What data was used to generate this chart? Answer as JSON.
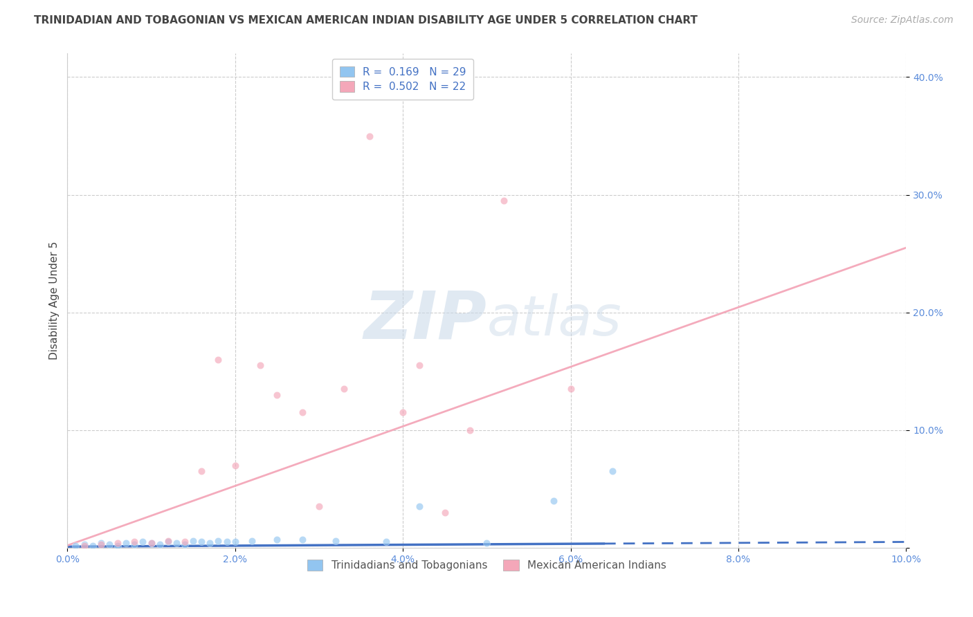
{
  "title": "TRINIDADIAN AND TOBAGONIAN VS MEXICAN AMERICAN INDIAN DISABILITY AGE UNDER 5 CORRELATION CHART",
  "source": "Source: ZipAtlas.com",
  "ylabel": "Disability Age Under 5",
  "xlim": [
    0.0,
    0.1
  ],
  "ylim": [
    0.0,
    0.42
  ],
  "xticks": [
    0.0,
    0.02,
    0.04,
    0.06,
    0.08,
    0.1
  ],
  "yticks": [
    0.0,
    0.1,
    0.2,
    0.3,
    0.4
  ],
  "ytick_labels": [
    "",
    "10.0%",
    "20.0%",
    "30.0%",
    "40.0%"
  ],
  "xtick_labels": [
    "0.0%",
    "2.0%",
    "4.0%",
    "6.0%",
    "8.0%",
    "10.0%"
  ],
  "grid_color": "#cccccc",
  "background_color": "#ffffff",
  "series": [
    {
      "name": "Trinidadians and Tobagonians",
      "R": 0.169,
      "N": 29,
      "color": "#92C5F0",
      "marker_color": "#92C5F0",
      "line_color": "#4472C4",
      "points_x": [
        0.001,
        0.002,
        0.003,
        0.004,
        0.005,
        0.006,
        0.007,
        0.008,
        0.009,
        0.01,
        0.011,
        0.012,
        0.013,
        0.014,
        0.015,
        0.016,
        0.017,
        0.018,
        0.019,
        0.02,
        0.022,
        0.025,
        0.028,
        0.032,
        0.038,
        0.042,
        0.05,
        0.058,
        0.065
      ],
      "points_y": [
        0.002,
        0.003,
        0.002,
        0.004,
        0.003,
        0.002,
        0.004,
        0.003,
        0.005,
        0.004,
        0.003,
        0.005,
        0.004,
        0.003,
        0.006,
        0.005,
        0.004,
        0.006,
        0.005,
        0.005,
        0.006,
        0.007,
        0.007,
        0.006,
        0.005,
        0.035,
        0.004,
        0.04,
        0.065
      ],
      "trend_x": [
        0.0,
        0.1
      ],
      "trend_y": [
        0.001,
        0.005
      ],
      "line_dashed_from": 0.065
    },
    {
      "name": "Mexican American Indians",
      "R": 0.502,
      "N": 22,
      "color": "#F4A7B9",
      "marker_color": "#F4A7B9",
      "line_color": "#F4A7B9",
      "points_x": [
        0.002,
        0.004,
        0.006,
        0.008,
        0.01,
        0.012,
        0.014,
        0.016,
        0.018,
        0.02,
        0.023,
        0.025,
        0.028,
        0.03,
        0.033,
        0.036,
        0.04,
        0.042,
        0.045,
        0.048,
        0.052,
        0.06
      ],
      "points_y": [
        0.002,
        0.003,
        0.004,
        0.005,
        0.004,
        0.006,
        0.005,
        0.065,
        0.16,
        0.07,
        0.155,
        0.13,
        0.115,
        0.035,
        0.135,
        0.35,
        0.115,
        0.155,
        0.03,
        0.1,
        0.295,
        0.135
      ],
      "trend_x": [
        0.0,
        0.1
      ],
      "trend_y": [
        0.002,
        0.255
      ]
    }
  ],
  "legend_entries": [
    {
      "label_r": "R = ",
      "label_r_val": "0.169",
      "label_n": "  N = ",
      "label_n_val": "29",
      "color": "#92C5F0"
    },
    {
      "label_r": "R = ",
      "label_r_val": "0.502",
      "label_n": "  N = ",
      "label_n_val": "22",
      "color": "#F4A7B9"
    }
  ],
  "title_fontsize": 11,
  "axis_label_fontsize": 11,
  "tick_fontsize": 10,
  "legend_fontsize": 11,
  "source_fontsize": 10,
  "title_color": "#444444",
  "axis_label_color": "#444444",
  "tick_color": "#5B8CDB",
  "source_color": "#aaaaaa",
  "legend_val_color": "#4472C4"
}
